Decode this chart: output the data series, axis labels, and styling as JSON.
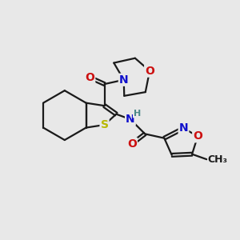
{
  "bg_color": "#e8e8e8",
  "bond_color": "#1a1a1a",
  "bond_width": 1.6,
  "dbo": 0.055,
  "atom_colors": {
    "S": "#b8b800",
    "N": "#1010cc",
    "O": "#cc1010",
    "H": "#4a8888",
    "C": "#1a1a1a"
  },
  "figsize": [
    3.0,
    3.0
  ],
  "dpi": 100
}
